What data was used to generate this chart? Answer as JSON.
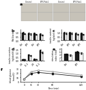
{
  "panel_b": {
    "label": "b",
    "categories": [
      "Ctrl",
      "BPY",
      "Ctrl",
      "BPY"
    ],
    "values_black": [
      1.0,
      0.92,
      0.88,
      0.82
    ],
    "values_white": [
      0.85,
      0.8,
      0.75,
      0.68
    ],
    "err_black": [
      0.08,
      0.07,
      0.07,
      0.06
    ],
    "err_white": [
      0.07,
      0.06,
      0.06,
      0.05
    ],
    "ylabel": "Pdx1/actin",
    "ylim": [
      0,
      1.4
    ],
    "yticks": [
      0,
      0.5,
      1.0
    ]
  },
  "panel_c": {
    "label": "c",
    "categories": [
      "Ctrl",
      "BPY",
      "Ctrl",
      "BPY"
    ],
    "values_black": [
      1.0,
      1.02,
      0.9,
      0.88
    ],
    "values_white": [
      0.88,
      0.9,
      0.78,
      0.75
    ],
    "err_black": [
      0.09,
      0.08,
      0.08,
      0.07
    ],
    "err_white": [
      0.08,
      0.07,
      0.07,
      0.06
    ],
    "ylabel": "insulin content\n(ng/islet)",
    "ylim": [
      0,
      1.4
    ],
    "yticks": [
      0,
      0.5,
      1.0
    ]
  },
  "panel_d": {
    "label": "d",
    "categories": [
      "2.8",
      "11.2",
      "2.8",
      "11.2"
    ],
    "values_black": [
      0.15,
      0.75,
      0.18,
      1.3
    ],
    "values_white": [
      0.12,
      0.65,
      0.15,
      1.05
    ],
    "err_black": [
      0.03,
      0.08,
      0.04,
      0.12
    ],
    "err_white": [
      0.02,
      0.07,
      0.03,
      0.1
    ],
    "ylabel": "insulin secretion\n(ng/islet/h)",
    "ylim": [
      0,
      1.6
    ],
    "yticks": [
      0,
      0.5,
      1.0,
      1.5
    ]
  },
  "panel_e": {
    "label": "e",
    "categories": [
      "Ctrl",
      "BPY"
    ],
    "values_black": [
      4.2,
      5.6
    ],
    "values_white": [
      3.5,
      4.8
    ],
    "err_black": [
      0.4,
      0.5
    ],
    "err_white": [
      0.35,
      0.45
    ],
    "ylabel": "stimulation\nindex (fold)",
    "ylim": [
      0,
      8
    ],
    "yticks": [
      0,
      2,
      4,
      6,
      8
    ]
  },
  "panel_f": {
    "label": "f",
    "timepoints": [
      0,
      15,
      30,
      60,
      120
    ],
    "values_black": [
      5.8,
      19.0,
      21.0,
      18.0,
      11.5
    ],
    "values_white": [
      5.5,
      23.0,
      26.0,
      23.0,
      15.0
    ],
    "err_black": [
      0.3,
      1.5,
      1.8,
      1.5,
      1.0
    ],
    "err_white": [
      0.3,
      1.8,
      2.0,
      1.8,
      1.2
    ],
    "ylabel": "blood glucose\n(mmol/L)",
    "xlabel": "Time (min)",
    "ylim": [
      0,
      30
    ],
    "yticks": [
      0,
      10,
      20,
      30
    ]
  },
  "bar_black": "#1a1a1a",
  "bar_white": "#f5f5f5",
  "bar_gray": "#888888",
  "figure_bg": "#ffffff",
  "bar_width": 0.32,
  "img_colors": [
    "#d4cfc8",
    "#ccc8c0",
    "#c8c4bc",
    "#c4c0b8"
  ]
}
